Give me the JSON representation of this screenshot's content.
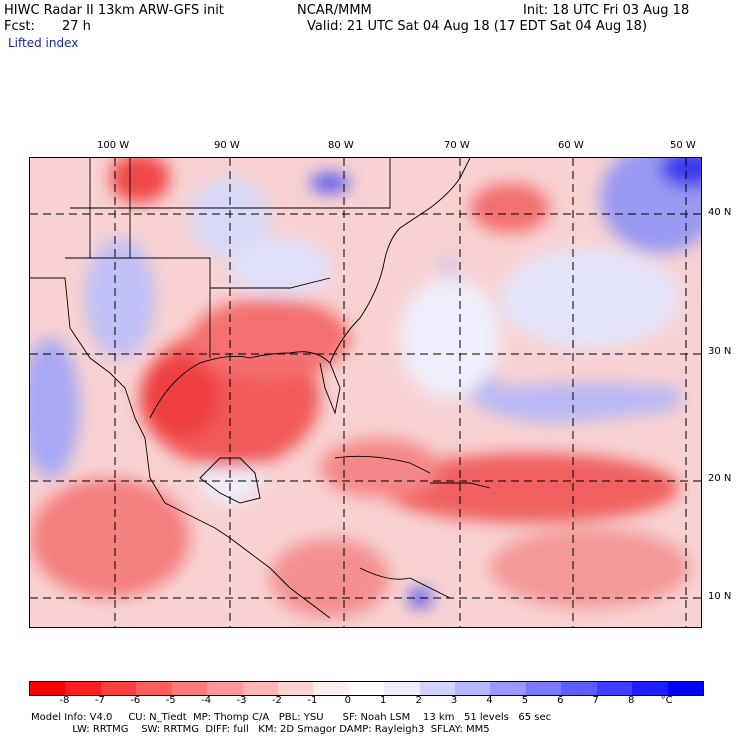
{
  "header": {
    "title": "HIWC Radar II 13km ARW-GFS init",
    "org": "NCAR/MMM",
    "init": "Init: 18 UTC Fri 03 Aug 18",
    "fcst_label": "Fcst:",
    "fcst_value": "27 h",
    "valid": "Valid: 21 UTC Sat 04 Aug 18 (17 EDT Sat 04 Aug 18)",
    "field": "Lifted index"
  },
  "map": {
    "lon_labels": [
      "100 W",
      "90 W",
      "80 W",
      "70 W",
      "60 W",
      "50 W"
    ],
    "lat_labels": [
      "40 N",
      "30 N",
      "20 N",
      "10 N"
    ]
  },
  "colorbar": {
    "colors": [
      "#ff0000",
      "#ff1e1e",
      "#ff3e3e",
      "#ff5c5c",
      "#ff7a7a",
      "#ff9898",
      "#ffb6b6",
      "#ffd2d2",
      "#ffeeee",
      "#ffffff",
      "#eeeeff",
      "#d2d2ff",
      "#b6b6ff",
      "#9898ff",
      "#7a7aff",
      "#5c5cff",
      "#3e3eff",
      "#1e1eff",
      "#0000ff"
    ],
    "labels": [
      "-8",
      "-7",
      "-6",
      "-5",
      "-4",
      "-3",
      "-2",
      "-1",
      "0",
      "1",
      "2",
      "3",
      "4",
      "5",
      "6",
      "7",
      "8",
      "°C"
    ]
  },
  "footer": {
    "line1": "Model Info: V4.0     CU: N_Tiedt  MP: Thomp C/A   PBL: YSU      SF: Noah LSM    13 km   51 levels   65 sec",
    "line2": "             LW: RRTMG    SW: RRTMG  DIFF: full   KM: 2D Smagor DAMP: Rayleigh3  SFLAY: MM5"
  }
}
